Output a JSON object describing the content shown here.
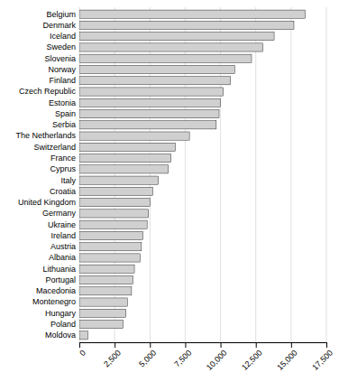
{
  "chart_data": {
    "type": "bar",
    "orientation": "horizontal",
    "categories": [
      "Belgium",
      "Denmark",
      "Iceland",
      "Sweden",
      "Slovenia",
      "Norway",
      "Finland",
      "Czech Republic",
      "Estonia",
      "Spain",
      "Serbia",
      "The Netherlands",
      "Switzerland",
      "France",
      "Cyprus",
      "Italy",
      "Croatia",
      "United Kingdom",
      "Germany",
      "Ukraine",
      "Ireland",
      "Austria",
      "Albania",
      "Lithuania",
      "Portugal",
      "Macedonia",
      "Montenegro",
      "Hungary",
      "Poland",
      "Moldova"
    ],
    "values": [
      16000,
      15200,
      13800,
      13000,
      12200,
      11000,
      10700,
      10200,
      10000,
      9900,
      9700,
      7800,
      6800,
      6500,
      6300,
      5600,
      5200,
      5000,
      4900,
      4800,
      4500,
      4400,
      4300,
      3900,
      3800,
      3700,
      3400,
      3300,
      3100,
      600
    ],
    "color": "#d0d0d0",
    "xlim": [
      0,
      17500
    ],
    "xticks": [
      0,
      {
        "value": 2500,
        "label": "2,500"
      },
      {
        "value": 5000,
        "label": "5,000"
      },
      {
        "value": 7500,
        "label": "7,500"
      },
      {
        "value": 10000,
        "label": "10,000"
      },
      {
        "value": 12500,
        "label": "12,500"
      },
      {
        "value": 15000,
        "label": "15,000"
      },
      {
        "value": 17500,
        "label": "17,500"
      }
    ],
    "grid": true
  }
}
